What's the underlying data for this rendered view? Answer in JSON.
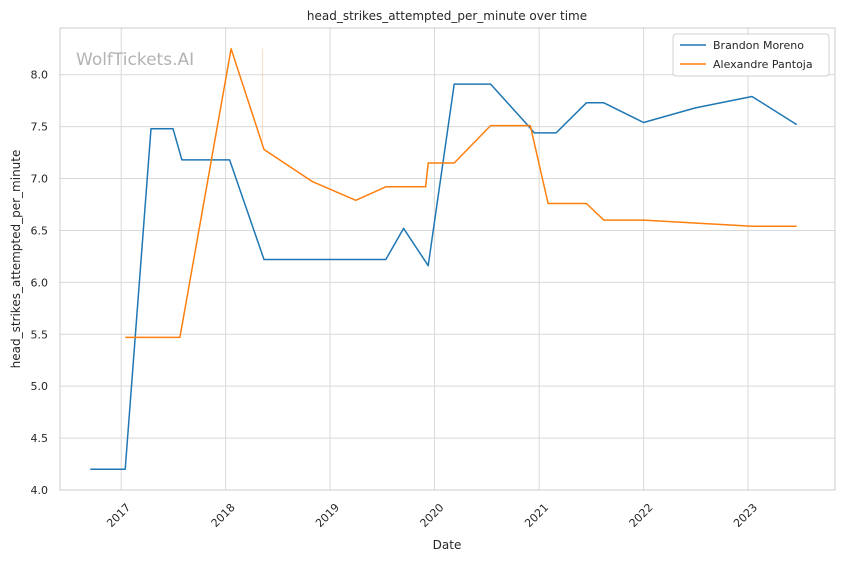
{
  "chart_data": {
    "type": "line",
    "title": "head_strikes_attempted_per_minute over time",
    "xlabel": "Date",
    "ylabel": "head_strikes_attempted_per_minute",
    "watermark": "WolfTickets.AI",
    "xlim": [
      "2016-06-01",
      "2023-11-01"
    ],
    "ylim": [
      4.0,
      8.45
    ],
    "x_ticks": [
      {
        "date": "2017-01-01",
        "label": "2017"
      },
      {
        "date": "2018-01-01",
        "label": "2018"
      },
      {
        "date": "2019-01-01",
        "label": "2019"
      },
      {
        "date": "2020-01-01",
        "label": "2020"
      },
      {
        "date": "2021-01-01",
        "label": "2021"
      },
      {
        "date": "2022-01-01",
        "label": "2022"
      },
      {
        "date": "2023-01-01",
        "label": "2023"
      }
    ],
    "y_ticks": [
      {
        "value": 4.0,
        "label": "4.0"
      },
      {
        "value": 4.5,
        "label": "4.5"
      },
      {
        "value": 5.0,
        "label": "5.0"
      },
      {
        "value": 5.5,
        "label": "5.5"
      },
      {
        "value": 6.0,
        "label": "6.0"
      },
      {
        "value": 6.5,
        "label": "6.5"
      },
      {
        "value": 7.0,
        "label": "7.0"
      },
      {
        "value": 7.5,
        "label": "7.5"
      },
      {
        "value": 8.0,
        "label": "8.0"
      }
    ],
    "grid": true,
    "legend_position": "top-right",
    "series": [
      {
        "name": "Brandon Moreno",
        "color": "#1f77b4",
        "points": [
          {
            "x": "2016-09-15",
            "y": 4.2
          },
          {
            "x": "2017-01-15",
            "y": 4.2
          },
          {
            "x": "2017-04-15",
            "y": 7.48
          },
          {
            "x": "2017-07-01",
            "y": 7.48
          },
          {
            "x": "2017-08-01",
            "y": 7.18
          },
          {
            "x": "2018-01-15",
            "y": 7.18
          },
          {
            "x": "2018-05-15",
            "y": 6.22
          },
          {
            "x": "2019-07-15",
            "y": 6.22
          },
          {
            "x": "2019-09-15",
            "y": 6.52
          },
          {
            "x": "2019-12-10",
            "y": 6.16
          },
          {
            "x": "2020-03-10",
            "y": 7.91
          },
          {
            "x": "2020-07-15",
            "y": 7.91
          },
          {
            "x": "2020-11-20",
            "y": 7.52
          },
          {
            "x": "2020-12-15",
            "y": 7.44
          },
          {
            "x": "2021-03-01",
            "y": 7.44
          },
          {
            "x": "2021-06-15",
            "y": 7.73
          },
          {
            "x": "2021-08-15",
            "y": 7.73
          },
          {
            "x": "2022-01-01",
            "y": 7.54
          },
          {
            "x": "2022-07-01",
            "y": 7.68
          },
          {
            "x": "2023-01-15",
            "y": 7.79
          },
          {
            "x": "2023-06-20",
            "y": 7.52
          }
        ]
      },
      {
        "name": "Alexandre Pantoja",
        "color": "#ff7f0e",
        "points": [
          {
            "x": "2017-01-15",
            "y": 5.47
          },
          {
            "x": "2017-07-25",
            "y": 5.47
          },
          {
            "x": "2018-01-20",
            "y": 8.25
          },
          {
            "x": "2018-05-15",
            "y": 7.28
          },
          {
            "x": "2018-11-01",
            "y": 6.97
          },
          {
            "x": "2019-04-01",
            "y": 6.79
          },
          {
            "x": "2019-07-15",
            "y": 6.92
          },
          {
            "x": "2019-12-01",
            "y": 6.92
          },
          {
            "x": "2019-12-10",
            "y": 7.15
          },
          {
            "x": "2020-03-10",
            "y": 7.15
          },
          {
            "x": "2020-07-15",
            "y": 7.51
          },
          {
            "x": "2020-12-01",
            "y": 7.51
          },
          {
            "x": "2021-02-01",
            "y": 6.76
          },
          {
            "x": "2021-06-15",
            "y": 6.76
          },
          {
            "x": "2021-08-15",
            "y": 6.6
          },
          {
            "x": "2022-01-01",
            "y": 6.6
          },
          {
            "x": "2023-01-15",
            "y": 6.54
          },
          {
            "x": "2023-06-20",
            "y": 6.54
          }
        ]
      }
    ]
  }
}
